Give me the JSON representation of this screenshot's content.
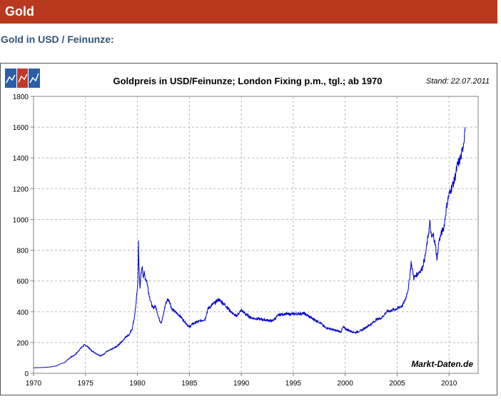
{
  "header": {
    "title": "Gold"
  },
  "section": {
    "title": "Gold in USD / Feinunze:"
  },
  "chart_data": {
    "type": "line",
    "title": "Goldpreis in USD/Feinunze; London Fixing p.m., tgl.; ab 1970",
    "stand": "Stand: 22.07.2011",
    "source": "Markt-Daten.de",
    "xlim": [
      1970,
      2012.8
    ],
    "ylim": [
      0,
      1800
    ],
    "xticks": [
      1970,
      1975,
      1980,
      1985,
      1990,
      1995,
      2000,
      2005,
      2010
    ],
    "yticks": [
      0,
      200,
      400,
      600,
      800,
      1000,
      1200,
      1400,
      1600,
      1800
    ],
    "grid": true,
    "line_color": "#0000cc",
    "series": [
      {
        "x": [
          1970.0,
          1971.0,
          1971.7,
          1972.2,
          1972.6,
          1973.0,
          1973.4,
          1973.6,
          1973.9,
          1974.2,
          1974.5,
          1974.9,
          1975.2,
          1975.6,
          1976.0,
          1976.4,
          1976.7,
          1977.0,
          1977.5,
          1978.0,
          1978.5,
          1978.9,
          1979.2,
          1979.5,
          1979.75,
          1979.9,
          1980.05,
          1980.1,
          1980.15,
          1980.25,
          1980.35,
          1980.45,
          1980.55,
          1980.65,
          1980.75,
          1980.9,
          1981.1,
          1981.3,
          1981.5,
          1981.7,
          1981.9,
          1982.1,
          1982.3,
          1982.5,
          1982.7,
          1982.9,
          1983.1,
          1983.3,
          1983.6,
          1984.0,
          1984.5,
          1985.0,
          1985.3,
          1985.6,
          1986.0,
          1986.5,
          1986.8,
          1987.1,
          1987.5,
          1987.8,
          1988.0,
          1988.5,
          1989.0,
          1989.5,
          1990.0,
          1990.5,
          1991.0,
          1992.0,
          1993.0,
          1993.6,
          1994.0,
          1995.0,
          1996.0,
          1997.0,
          1997.6,
          1998.0,
          1999.0,
          1999.6,
          1999.8,
          2000.0,
          2000.5,
          2001.0,
          2001.6,
          2002.0,
          2002.5,
          2003.0,
          2003.5,
          2004.0,
          2004.5,
          2005.0,
          2005.5,
          2005.8,
          2006.1,
          2006.35,
          2006.6,
          2007.0,
          2007.4,
          2007.7,
          2008.0,
          2008.15,
          2008.3,
          2008.5,
          2008.7,
          2008.85,
          2009.0,
          2009.2,
          2009.5,
          2009.8,
          2009.95,
          2010.2,
          2010.5,
          2010.8,
          2011.0,
          2011.2,
          2011.4,
          2011.55
        ],
        "y": [
          36,
          38,
          42,
          48,
          62,
          70,
          95,
          105,
          115,
          135,
          160,
          185,
          175,
          145,
          130,
          115,
          120,
          140,
          155,
          175,
          205,
          240,
          250,
          290,
          380,
          480,
          600,
          850,
          700,
          560,
          640,
          700,
          630,
          650,
          620,
          600,
          520,
          460,
          420,
          440,
          400,
          350,
          330,
          380,
          450,
          480,
          470,
          420,
          400,
          380,
          340,
          300,
          320,
          330,
          340,
          350,
          420,
          440,
          460,
          480,
          470,
          440,
          400,
          370,
          410,
          380,
          360,
          350,
          340,
          380,
          385,
          385,
          390,
          350,
          330,
          300,
          280,
          270,
          300,
          290,
          275,
          265,
          280,
          300,
          320,
          350,
          360,
          400,
          410,
          420,
          440,
          480,
          560,
          720,
          620,
          650,
          680,
          760,
          900,
          980,
          880,
          900,
          820,
          740,
          850,
          900,
          950,
          1100,
          1150,
          1200,
          1250,
          1350,
          1380,
          1420,
          1500,
          1600
        ]
      }
    ]
  }
}
